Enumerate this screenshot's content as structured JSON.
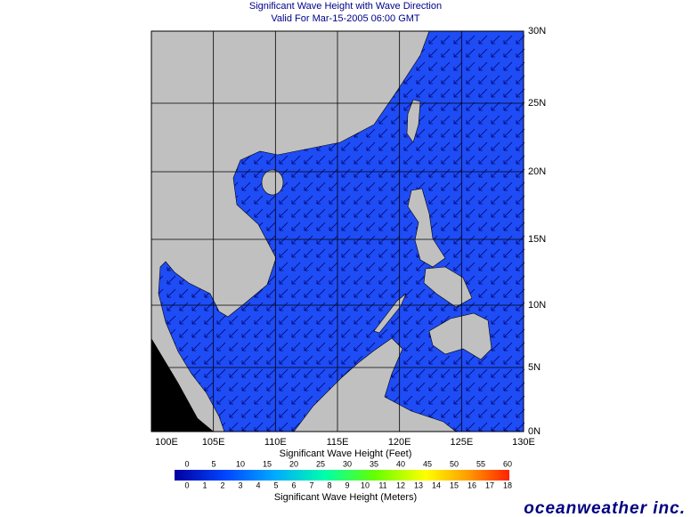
{
  "title": "Significant Wave Height with Wave Direction",
  "subtitle": "Valid For Mar-15-2005 06:00 GMT",
  "map": {
    "lon_labels": [
      "100E",
      "105E",
      "110E",
      "115E",
      "120E",
      "125E",
      "130E"
    ],
    "lat_labels": [
      "30N",
      "25N",
      "20N",
      "15N",
      "10N",
      "5N",
      "0N"
    ]
  },
  "colorbar": {
    "feet_title": "Significant Wave Height (Feet)",
    "feet_ticks": [
      0,
      5,
      10,
      15,
      20,
      25,
      30,
      35,
      40,
      45,
      50,
      55,
      60
    ],
    "meter_title": "Significant Wave Height (Meters)",
    "meter_ticks": [
      0,
      1,
      2,
      3,
      4,
      5,
      6,
      7,
      8,
      9,
      10,
      11,
      12,
      13,
      14,
      15,
      16,
      17,
      18
    ]
  },
  "logo": "oceanweather inc."
}
